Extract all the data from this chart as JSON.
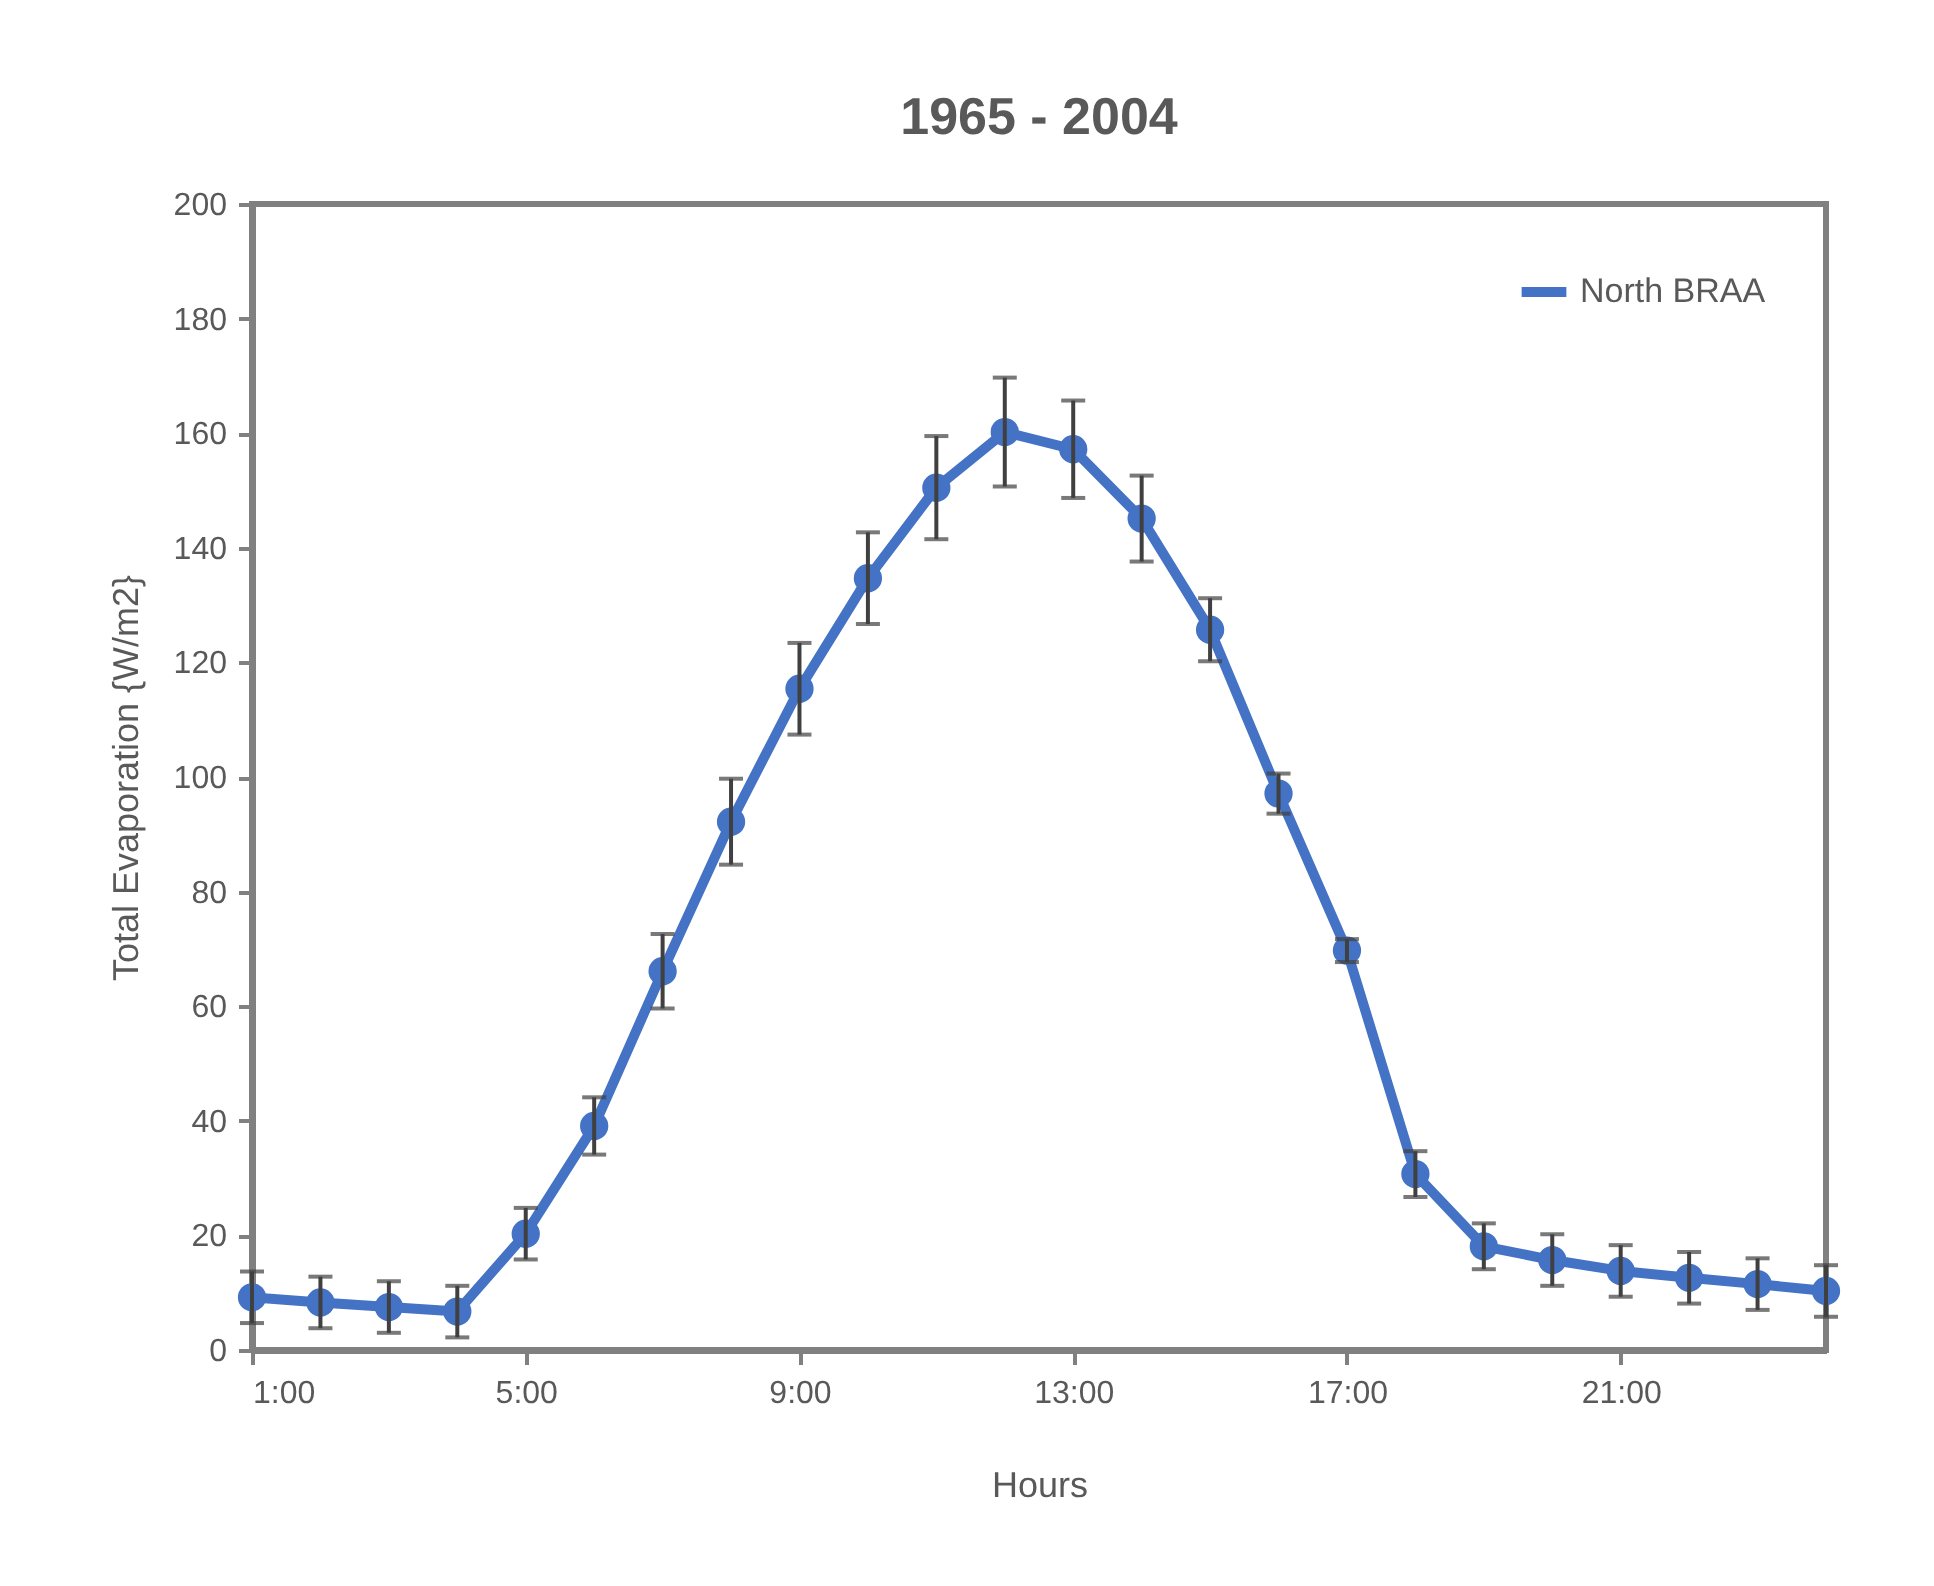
{
  "chart_data": {
    "type": "line",
    "title": "1965 - 2004",
    "xlabel": "Hours",
    "ylabel": "Total Evaporation {W/m2}",
    "x": [
      1,
      2,
      3,
      4,
      5,
      6,
      7,
      8,
      9,
      10,
      11,
      12,
      13,
      14,
      15,
      16,
      17,
      18,
      19,
      20,
      21,
      22,
      23,
      24
    ],
    "series": [
      {
        "name": "North BRAA",
        "color": "#4472c4",
        "values": [
          9.2,
          8.3,
          7.5,
          6.7,
          20.3,
          39.1,
          66.1,
          92.2,
          115.4,
          134.7,
          150.5,
          160.2,
          157.2,
          145.1,
          125.7,
          97.1,
          69.7,
          30.7,
          18.1,
          15.7,
          13.8,
          12.6,
          11.5,
          10.3
        ],
        "errors": [
          4.5,
          4.5,
          4.5,
          4.5,
          4.5,
          5,
          6.5,
          7.5,
          8,
          8,
          9,
          9.5,
          8.5,
          7.5,
          5.5,
          3.5,
          2,
          4,
          4,
          4.5,
          4.5,
          4.5,
          4.5,
          4.5
        ]
      }
    ],
    "xlim": [
      1,
      24
    ],
    "xticks": [
      {
        "value": 1,
        "label": "1:00"
      },
      {
        "value": 5,
        "label": "5:00"
      },
      {
        "value": 9,
        "label": "9:00"
      },
      {
        "value": 13,
        "label": "13:00"
      },
      {
        "value": 17,
        "label": "17:00"
      },
      {
        "value": 21,
        "label": "21:00"
      }
    ],
    "ylim": [
      0,
      200
    ],
    "yticks": [
      0,
      20,
      40,
      60,
      80,
      100,
      120,
      140,
      160,
      180,
      200
    ],
    "grid": false,
    "legend": "top right",
    "marker": "circle",
    "line_style": "solid"
  }
}
